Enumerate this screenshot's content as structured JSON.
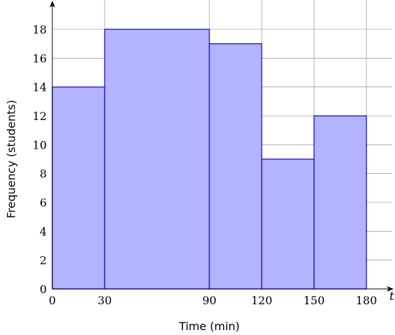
{
  "chart_data": {
    "type": "bar",
    "title": "",
    "xlabel": "Time (min)",
    "ylabel": "Frequency (students)",
    "x_axis_variable": "t",
    "bins": [
      {
        "start": 0,
        "end": 30,
        "frequency": 14
      },
      {
        "start": 30,
        "end": 90,
        "frequency": 18
      },
      {
        "start": 90,
        "end": 120,
        "frequency": 17
      },
      {
        "start": 120,
        "end": 150,
        "frequency": 9
      },
      {
        "start": 150,
        "end": 180,
        "frequency": 12
      }
    ],
    "xticks": [
      "0",
      "30",
      "90",
      "120",
      "150",
      "180"
    ],
    "yticks": [
      "0",
      "2",
      "4",
      "6",
      "8",
      "10",
      "12",
      "14",
      "16",
      "18"
    ],
    "xlim": [
      0,
      180
    ],
    "ylim": [
      0,
      18
    ],
    "grid": true,
    "colors": {
      "bar_fill": "#b3b3ff",
      "bar_stroke": "#1f1fd6",
      "grid": "#808080",
      "axis": "#000000"
    }
  }
}
